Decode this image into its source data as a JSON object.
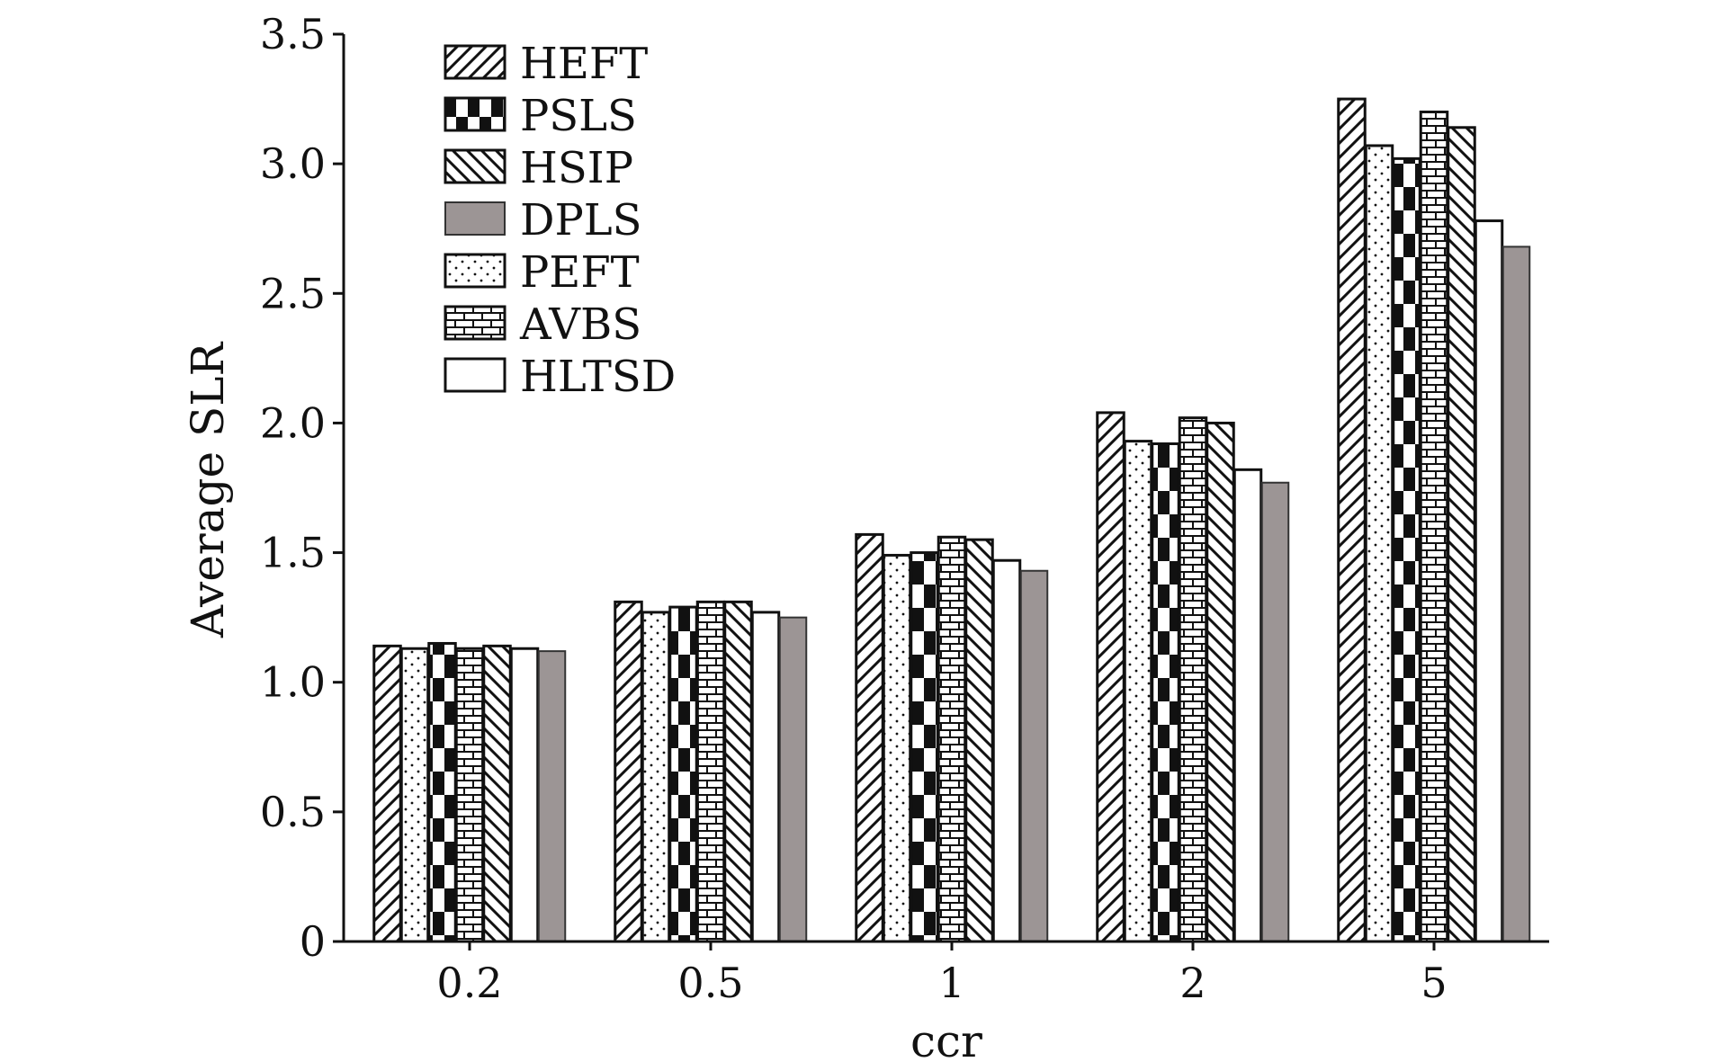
{
  "chart_data": {
    "type": "bar",
    "xlabel": "ccr",
    "ylabel": "Average SLR",
    "ylim": [
      0,
      3.5
    ],
    "yticks": [
      "0",
      "0.5",
      "1.0",
      "1.5",
      "2.0",
      "2.5",
      "3.0",
      "3.5"
    ],
    "categories": [
      "0.2",
      "0.5",
      "1",
      "2",
      "5"
    ],
    "legend_position": "top-left",
    "grid": false,
    "series": [
      {
        "name": "HEFT",
        "pattern": "diagonal-forward",
        "values": [
          1.14,
          1.31,
          1.57,
          2.04,
          3.25
        ]
      },
      {
        "name": "PEFT",
        "pattern": "dots",
        "values": [
          1.13,
          1.27,
          1.49,
          1.93,
          3.07
        ]
      },
      {
        "name": "PSLS",
        "pattern": "checker",
        "values": [
          1.15,
          1.29,
          1.5,
          1.92,
          3.02
        ]
      },
      {
        "name": "AVBS",
        "pattern": "brick",
        "values": [
          1.13,
          1.31,
          1.56,
          2.02,
          3.2
        ]
      },
      {
        "name": "HSIP",
        "pattern": "diagonal-back",
        "values": [
          1.14,
          1.31,
          1.55,
          2.0,
          3.14
        ]
      },
      {
        "name": "HLTSD",
        "pattern": "white",
        "values": [
          1.13,
          1.27,
          1.47,
          1.82,
          2.78
        ]
      },
      {
        "name": "DPLS",
        "pattern": "gray",
        "values": [
          1.12,
          1.25,
          1.43,
          1.77,
          2.68
        ]
      }
    ],
    "legend_order": [
      "HEFT",
      "PSLS",
      "HSIP",
      "DPLS",
      "PEFT",
      "AVBS",
      "HLTSD"
    ],
    "colors": {
      "gray_fill": "#9c9595",
      "ink": "#111111"
    }
  }
}
